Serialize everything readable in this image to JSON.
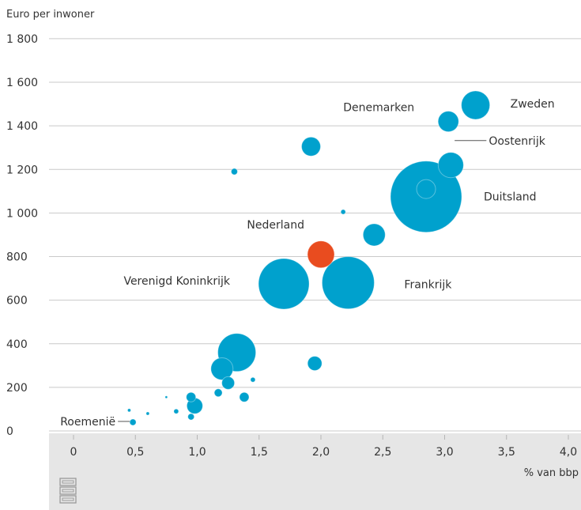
{
  "chart_data": {
    "type": "scatter",
    "ylabel": "Euro per inwoner",
    "xlabel": "% van bbp",
    "xlim": [
      -0.2,
      4.0
    ],
    "ylim": [
      0,
      1800
    ],
    "x_ticks": [
      {
        "value": 0,
        "label": "0"
      },
      {
        "value": 0.5,
        "label": "0,5"
      },
      {
        "value": 1.0,
        "label": "1,0"
      },
      {
        "value": 1.5,
        "label": "1,5"
      },
      {
        "value": 2.0,
        "label": "2,0"
      },
      {
        "value": 2.5,
        "label": "2,5"
      },
      {
        "value": 3.0,
        "label": "3,0"
      },
      {
        "value": 3.5,
        "label": "3,5"
      },
      {
        "value": 4.0,
        "label": "4,0"
      }
    ],
    "y_ticks": [
      {
        "value": 0,
        "label": "0"
      },
      {
        "value": 200,
        "label": "200"
      },
      {
        "value": 400,
        "label": "400"
      },
      {
        "value": 600,
        "label": "600"
      },
      {
        "value": 800,
        "label": "800"
      },
      {
        "value": 1000,
        "label": "1 000"
      },
      {
        "value": 1200,
        "label": "1 200"
      },
      {
        "value": 1400,
        "label": "1 400"
      },
      {
        "value": 1600,
        "label": "1 600"
      },
      {
        "value": 1800,
        "label": "1 800"
      }
    ],
    "grid": true,
    "colors": {
      "default": "#00a1cd",
      "highlight": "#e94c1f",
      "grid": "#c9c9c9",
      "axis_band": "#e6e6e6"
    },
    "points": [
      {
        "x": 2.85,
        "y": 1075,
        "r": 45,
        "label": "Duitsland"
      },
      {
        "x": 2.22,
        "y": 680,
        "r": 33,
        "label": "Frankrijk"
      },
      {
        "x": 1.7,
        "y": 675,
        "r": 32,
        "label": "Verenigd Koninkrijk"
      },
      {
        "x": 1.32,
        "y": 360,
        "r": 24
      },
      {
        "x": 2.0,
        "y": 810,
        "r": 17,
        "label": "Nederland",
        "highlight": true
      },
      {
        "x": 3.25,
        "y": 1495,
        "r": 18,
        "label": "Zweden"
      },
      {
        "x": 3.03,
        "y": 1420,
        "r": 13,
        "label": "Denemarken"
      },
      {
        "x": 3.05,
        "y": 1220,
        "r": 16,
        "label": "Oostenrijk"
      },
      {
        "x": 2.85,
        "y": 1110,
        "r": 12
      },
      {
        "x": 2.43,
        "y": 900,
        "r": 14
      },
      {
        "x": 1.92,
        "y": 1305,
        "r": 12
      },
      {
        "x": 1.3,
        "y": 1190,
        "r": 4
      },
      {
        "x": 2.18,
        "y": 1005,
        "r": 3
      },
      {
        "x": 1.95,
        "y": 310,
        "r": 9
      },
      {
        "x": 1.2,
        "y": 285,
        "r": 14
      },
      {
        "x": 1.25,
        "y": 220,
        "r": 8
      },
      {
        "x": 1.17,
        "y": 175,
        "r": 5
      },
      {
        "x": 1.38,
        "y": 155,
        "r": 6
      },
      {
        "x": 1.45,
        "y": 235,
        "r": 3
      },
      {
        "x": 0.95,
        "y": 155,
        "r": 6
      },
      {
        "x": 0.98,
        "y": 115,
        "r": 10
      },
      {
        "x": 0.95,
        "y": 65,
        "r": 4
      },
      {
        "x": 0.83,
        "y": 90,
        "r": 3
      },
      {
        "x": 0.75,
        "y": 155,
        "r": 1.5
      },
      {
        "x": 0.6,
        "y": 80,
        "r": 2
      },
      {
        "x": 0.45,
        "y": 95,
        "r": 2
      },
      {
        "x": 0.48,
        "y": 40,
        "r": 4,
        "label": "Roemenië"
      }
    ]
  }
}
